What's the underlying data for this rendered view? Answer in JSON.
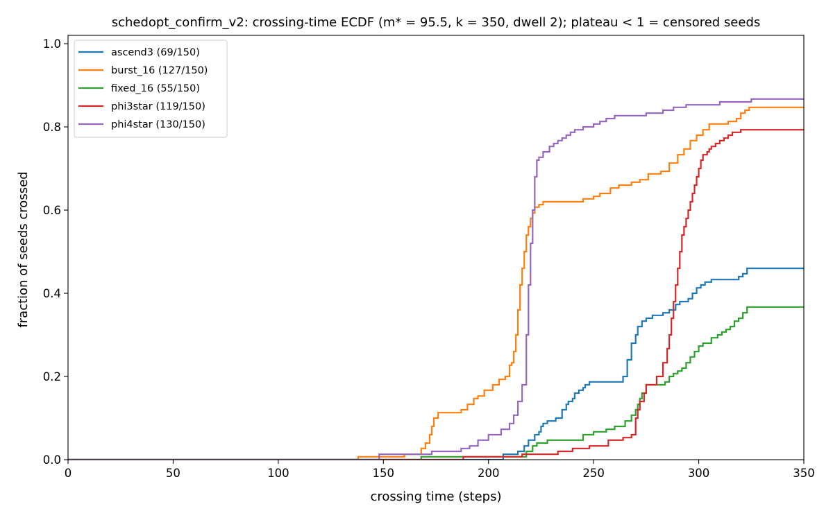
{
  "chart_data": {
    "type": "line",
    "title": "schedopt_confirm_v2: crossing-time ECDF (m* = 95.5, k = 350, dwell 2); plateau < 1 = censored seeds",
    "xlabel": "crossing time (steps)",
    "ylabel": "fraction of seeds crossed",
    "xlim": [
      0,
      350
    ],
    "ylim": [
      0,
      1.02
    ],
    "xticks": [
      0,
      50,
      100,
      150,
      200,
      250,
      300,
      350
    ],
    "xtick_labels": [
      "0",
      "50",
      "100",
      "150",
      "200",
      "250",
      "300",
      "350"
    ],
    "yticks": [
      0,
      0.2,
      0.4,
      0.6,
      0.8,
      1.0
    ],
    "ytick_labels": [
      "0.0",
      "0.2",
      "0.4",
      "0.6",
      "0.8",
      "1.0"
    ],
    "grid": false,
    "legend_position": "top-left",
    "step": "post",
    "series": [
      {
        "name": "ascend3 (69/150)",
        "color": "#1f77b4",
        "x": [
          0,
          207,
          214,
          217,
          219,
          222,
          224,
          225,
          226,
          228,
          229,
          232,
          235,
          237,
          238,
          240,
          241,
          243,
          245,
          246,
          248,
          250,
          258,
          264,
          266,
          268,
          270,
          271,
          273,
          275,
          278,
          283,
          286,
          289,
          291,
          293,
          295,
          297,
          299,
          301,
          303,
          306,
          316,
          319,
          321,
          323,
          350
        ],
        "y": [
          0,
          0.013,
          0.02,
          0.033,
          0.047,
          0.06,
          0.067,
          0.08,
          0.087,
          0.093,
          0.093,
          0.1,
          0.12,
          0.133,
          0.14,
          0.147,
          0.16,
          0.167,
          0.173,
          0.18,
          0.187,
          0.187,
          0.187,
          0.2,
          0.24,
          0.28,
          0.3,
          0.32,
          0.333,
          0.34,
          0.347,
          0.353,
          0.36,
          0.373,
          0.38,
          0.38,
          0.387,
          0.4,
          0.413,
          0.42,
          0.427,
          0.433,
          0.433,
          0.44,
          0.447,
          0.46,
          0.46
        ]
      },
      {
        "name": "burst_16 (127/150)",
        "color": "#ff7f0e",
        "x": [
          0,
          138,
          160,
          168,
          170,
          172,
          173,
          174,
          176,
          181,
          187,
          190,
          193,
          195,
          198,
          202,
          205,
          208,
          210,
          211,
          212,
          213,
          214,
          215,
          216,
          217,
          218,
          219,
          220,
          221,
          222,
          224,
          226,
          228,
          230,
          245,
          250,
          253,
          258,
          262,
          268,
          272,
          276,
          282,
          286,
          290,
          293,
          296,
          299,
          302,
          305,
          310,
          314,
          318,
          320,
          322,
          324,
          350
        ],
        "y": [
          0,
          0.007,
          0.013,
          0.027,
          0.04,
          0.06,
          0.08,
          0.1,
          0.113,
          0.113,
          0.12,
          0.133,
          0.147,
          0.153,
          0.167,
          0.18,
          0.193,
          0.2,
          0.227,
          0.233,
          0.26,
          0.3,
          0.36,
          0.42,
          0.46,
          0.5,
          0.54,
          0.56,
          0.58,
          0.593,
          0.607,
          0.613,
          0.62,
          0.62,
          0.62,
          0.627,
          0.633,
          0.64,
          0.653,
          0.66,
          0.667,
          0.673,
          0.687,
          0.693,
          0.713,
          0.733,
          0.747,
          0.767,
          0.78,
          0.793,
          0.807,
          0.807,
          0.813,
          0.82,
          0.833,
          0.84,
          0.847,
          0.847
        ]
      },
      {
        "name": "fixed_16 (55/150)",
        "color": "#2ca02c",
        "x": [
          0,
          168,
          189,
          218,
          221,
          223,
          225,
          228,
          230,
          237,
          245,
          250,
          256,
          260,
          265,
          268,
          270,
          271,
          272,
          273,
          275,
          279,
          284,
          286,
          288,
          290,
          292,
          294,
          296,
          298,
          300,
          302,
          306,
          309,
          311,
          313,
          315,
          317,
          319,
          321,
          323,
          350
        ],
        "y": [
          0,
          0.007,
          0.007,
          0.02,
          0.033,
          0.04,
          0.04,
          0.047,
          0.047,
          0.047,
          0.06,
          0.067,
          0.073,
          0.08,
          0.093,
          0.107,
          0.12,
          0.133,
          0.147,
          0.16,
          0.18,
          0.18,
          0.187,
          0.2,
          0.207,
          0.213,
          0.22,
          0.233,
          0.247,
          0.26,
          0.273,
          0.28,
          0.293,
          0.3,
          0.307,
          0.313,
          0.32,
          0.333,
          0.34,
          0.353,
          0.367,
          0.367
        ]
      },
      {
        "name": "phi3star (119/150)",
        "color": "#d62728",
        "x": [
          0,
          188,
          216,
          233,
          240,
          248,
          252,
          257,
          264,
          268,
          270,
          271,
          272,
          274,
          275,
          280,
          283,
          285,
          286,
          287,
          288,
          289,
          290,
          291,
          292,
          293,
          294,
          295,
          296,
          297,
          298,
          299,
          300,
          301,
          302,
          304,
          305,
          306,
          308,
          310,
          312,
          314,
          316,
          318,
          320,
          322,
          324,
          350
        ],
        "y": [
          0,
          0.007,
          0.013,
          0.02,
          0.027,
          0.033,
          0.033,
          0.047,
          0.053,
          0.06,
          0.1,
          0.12,
          0.14,
          0.16,
          0.18,
          0.2,
          0.233,
          0.267,
          0.3,
          0.34,
          0.38,
          0.42,
          0.46,
          0.5,
          0.54,
          0.56,
          0.58,
          0.6,
          0.62,
          0.64,
          0.66,
          0.68,
          0.7,
          0.72,
          0.733,
          0.74,
          0.747,
          0.753,
          0.76,
          0.767,
          0.773,
          0.78,
          0.787,
          0.787,
          0.793,
          0.793,
          0.793,
          0.793
        ]
      },
      {
        "name": "phi4star (130/150)",
        "color": "#9467bd",
        "x": [
          0,
          148,
          158,
          173,
          178,
          187,
          191,
          195,
          200,
          206,
          210,
          212,
          214,
          216,
          218,
          219,
          220,
          221,
          222,
          223,
          224,
          226,
          229,
          231,
          233,
          235,
          237,
          239,
          241,
          245,
          250,
          253,
          256,
          260,
          265,
          275,
          283,
          288,
          294,
          300,
          310,
          320,
          325,
          350
        ],
        "y": [
          0,
          0.013,
          0.013,
          0.02,
          0.02,
          0.027,
          0.033,
          0.047,
          0.06,
          0.073,
          0.087,
          0.107,
          0.14,
          0.18,
          0.3,
          0.42,
          0.52,
          0.6,
          0.68,
          0.72,
          0.727,
          0.74,
          0.753,
          0.76,
          0.767,
          0.773,
          0.78,
          0.787,
          0.793,
          0.8,
          0.807,
          0.813,
          0.82,
          0.827,
          0.827,
          0.833,
          0.84,
          0.847,
          0.853,
          0.853,
          0.86,
          0.86,
          0.867,
          0.867
        ]
      }
    ]
  }
}
